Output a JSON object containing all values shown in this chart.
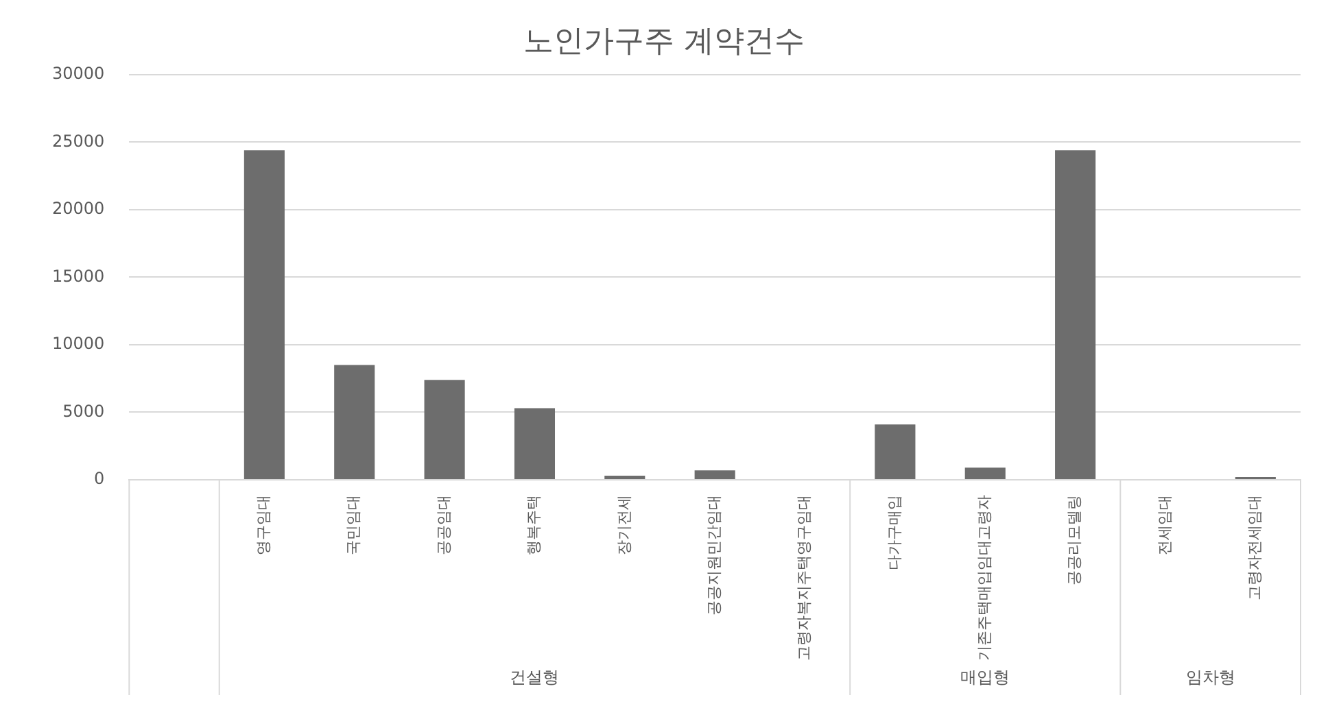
{
  "chart_data": {
    "type": "bar",
    "title": "노인가구주 계약건수",
    "categories": [
      null,
      "영구임대",
      "국민임대",
      "공공임대",
      "행복주택",
      "장기전세",
      "공공지원민간임대",
      "고령자복지주택영구임대",
      "다가구매입",
      "기존주택매입임대고령자",
      "공공리모델링",
      "전세임대",
      "고령자전세임대"
    ],
    "values": [
      null,
      24400,
      8500,
      7400,
      5300,
      300,
      700,
      0,
      4100,
      900,
      24400,
      0,
      200
    ],
    "color": "#6d6d6d",
    "ylim": [
      0,
      30000
    ],
    "yticks": [
      0,
      5000,
      10000,
      15000,
      20000,
      25000,
      30000
    ],
    "grid": "y",
    "legend": false,
    "annotations": [
      "건설형",
      "매입형",
      "임차형"
    ]
  }
}
